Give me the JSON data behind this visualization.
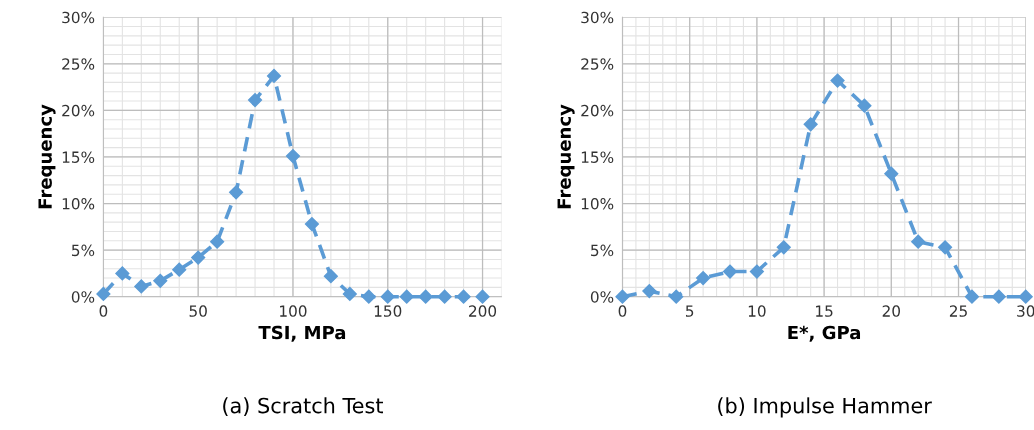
{
  "chart_data": [
    {
      "type": "line",
      "title": "(a) Scratch Test",
      "xlabel": "TSI, MPa",
      "ylabel": "Frequency",
      "marker": "diamond",
      "line_style": "dashed",
      "grid": true,
      "legend": false,
      "x": [
        0,
        10,
        20,
        30,
        40,
        50,
        60,
        70,
        80,
        90,
        100,
        110,
        120,
        130,
        140,
        150,
        160,
        170,
        180,
        190,
        200
      ],
      "series": [
        {
          "color": "#5b9bd5",
          "values": [
            0.3,
            2.5,
            1.1,
            1.7,
            2.9,
            4.2,
            5.9,
            11.2,
            21.1,
            23.7,
            15.1,
            7.8,
            2.2,
            0.3,
            0,
            0,
            0,
            0,
            0,
            0,
            0
          ]
        }
      ],
      "xlim": [
        0,
        210
      ],
      "xticks": [
        0,
        50,
        100,
        150,
        200
      ],
      "ylim": [
        0,
        30
      ],
      "yticks": [
        {
          "value": 0,
          "label": "0%"
        },
        {
          "value": 5,
          "label": "5%"
        },
        {
          "value": 10,
          "label": "10%"
        },
        {
          "value": 15,
          "label": "15%"
        },
        {
          "value": 20,
          "label": "20%"
        },
        {
          "value": 25,
          "label": "25%"
        },
        {
          "value": 30,
          "label": "30%"
        }
      ]
    },
    {
      "type": "line",
      "title": "(b) Impulse Hammer",
      "xlabel": "E*, GPa",
      "ylabel": "Frequency",
      "marker": "diamond",
      "line_style": "dashed",
      "grid": true,
      "legend": false,
      "x": [
        0,
        2,
        4,
        6,
        8,
        10,
        12,
        14,
        16,
        18,
        20,
        22,
        24,
        26,
        28,
        30
      ],
      "series": [
        {
          "color": "#5b9bd5",
          "values": [
            0,
            0.6,
            0,
            2.0,
            2.7,
            2.7,
            5.3,
            18.5,
            23.2,
            20.5,
            13.2,
            5.9,
            5.3,
            0,
            0,
            0
          ]
        }
      ],
      "xlim": [
        0,
        30
      ],
      "xticks": [
        0,
        5,
        10,
        15,
        20,
        25,
        30
      ],
      "ylim": [
        0,
        30
      ],
      "yticks": [
        {
          "value": 0,
          "label": "0%"
        },
        {
          "value": 5,
          "label": "5%"
        },
        {
          "value": 10,
          "label": "10%"
        },
        {
          "value": 15,
          "label": "15%"
        },
        {
          "value": 20,
          "label": "20%"
        },
        {
          "value": 25,
          "label": "25%"
        },
        {
          "value": 30,
          "label": "30%"
        }
      ]
    }
  ]
}
